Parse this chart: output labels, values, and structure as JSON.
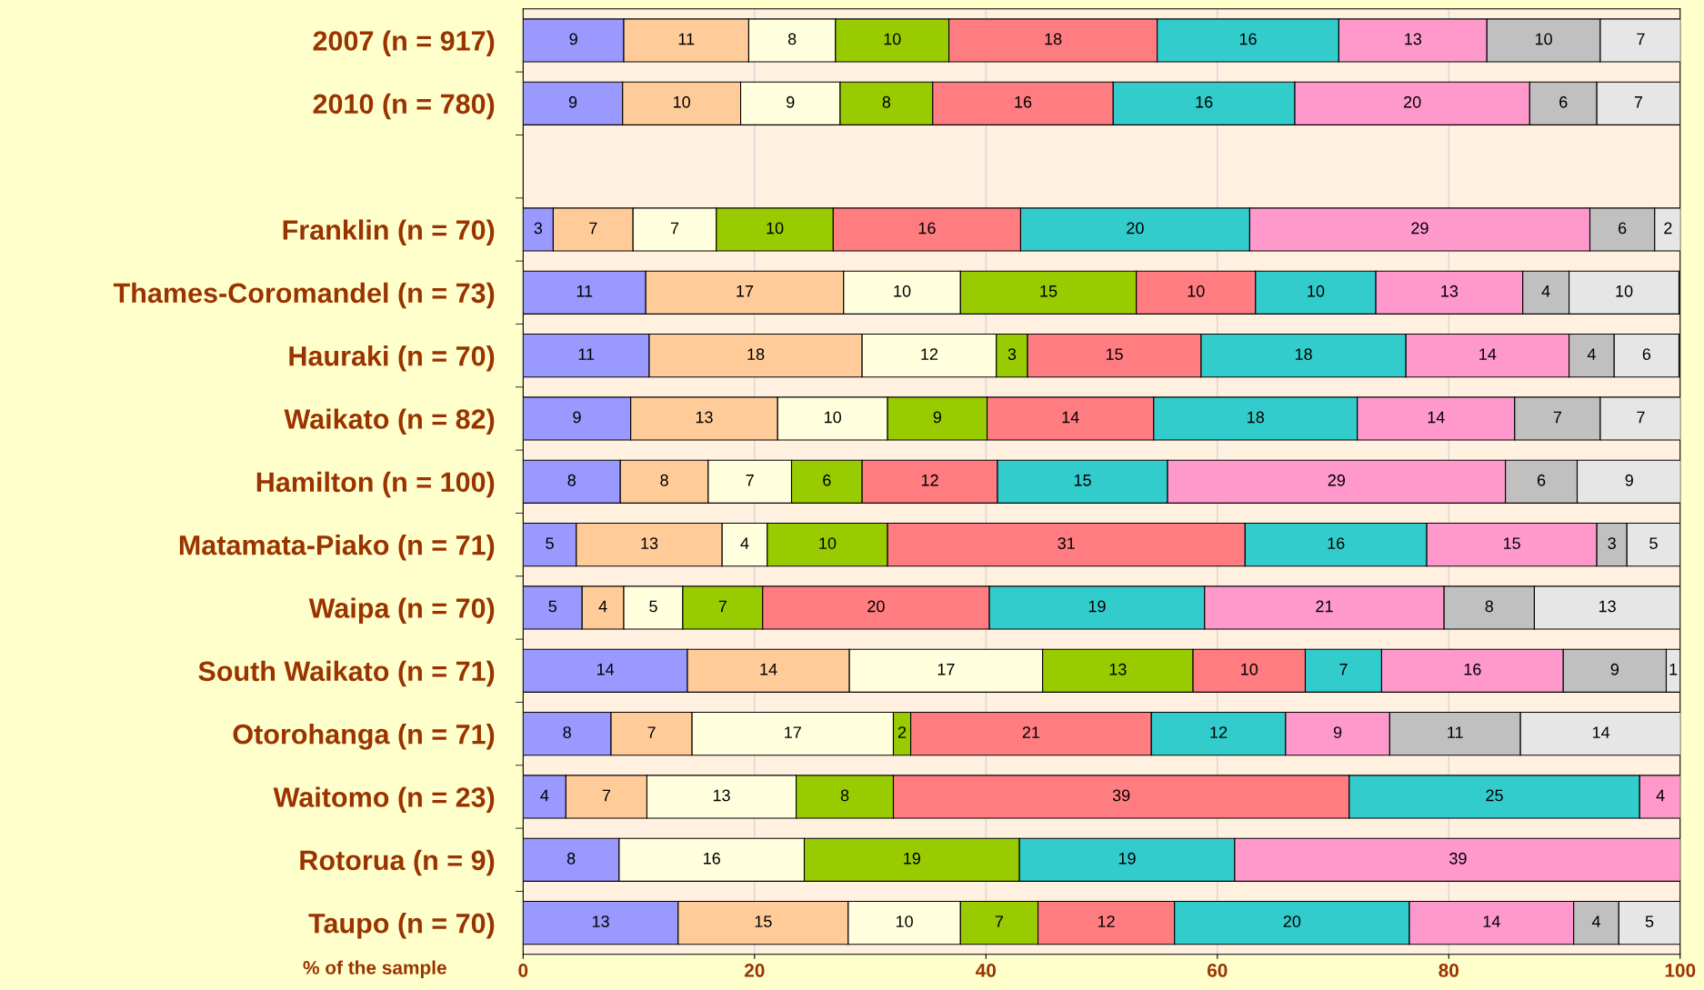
{
  "chart_data": {
    "type": "bar",
    "orientation": "horizontal",
    "stacked": true,
    "categories": [
      "2007 (n = 917)",
      "2010 (n = 780)",
      null,
      "Franklin (n = 70)",
      "Thames-Coromandel (n = 73)",
      "Hauraki (n = 70)",
      "Waikato (n = 82)",
      "Hamilton (n = 100)",
      "Matamata-Piako (n = 71)",
      "Waipa (n = 70)",
      "South Waikato (n = 71)",
      "Otorohanga (n = 71)",
      "Waitomo (n = 23)",
      "Rotorua (n = 9)",
      "Taupo (n = 70)"
    ],
    "series": [
      {
        "color": "#9999ff",
        "values": [
          8.7,
          8.6,
          null,
          2.6,
          10.6,
          10.9,
          9.3,
          8.4,
          4.6,
          5.1,
          14.2,
          7.6,
          3.7,
          8.3,
          13.4
        ],
        "value_labels": [
          "9",
          "9",
          null,
          "3",
          "11",
          "11",
          "9",
          "8",
          "5",
          "5",
          "14",
          "8",
          "4",
          "8",
          "13"
        ]
      },
      {
        "color": "#ffcc99",
        "values": [
          10.8,
          10.2,
          null,
          6.9,
          17.1,
          18.4,
          12.7,
          7.6,
          12.6,
          3.6,
          14.0,
          7.0,
          7.0,
          null,
          14.7
        ],
        "value_labels": [
          "11",
          "10",
          null,
          "7",
          "17",
          "18",
          "13",
          "8",
          "13",
          "4",
          "14",
          "7",
          "7",
          null,
          "15"
        ]
      },
      {
        "color": "#ffffdd",
        "values": [
          7.5,
          8.6,
          null,
          7.2,
          10.1,
          11.6,
          9.5,
          7.2,
          3.9,
          5.1,
          16.7,
          17.4,
          12.9,
          16.0,
          9.7
        ],
        "value_labels": [
          "8",
          "9",
          null,
          "7",
          "10",
          "12",
          "10",
          "7",
          "4",
          "5",
          "17",
          "17",
          "13",
          "16",
          "10"
        ]
      },
      {
        "color": "#99cc00",
        "values": [
          9.8,
          8.0,
          null,
          10.1,
          15.2,
          2.7,
          8.6,
          6.1,
          10.4,
          6.9,
          13.0,
          1.5,
          8.4,
          18.6,
          6.7
        ],
        "value_labels": [
          "10",
          "8",
          null,
          "10",
          "15",
          "3",
          "9",
          "6",
          "10",
          "7",
          "13",
          "2",
          "8",
          "19",
          "7"
        ]
      },
      {
        "color": "#ff7c80",
        "values": [
          18.0,
          15.6,
          null,
          16.2,
          10.3,
          15.0,
          14.4,
          11.7,
          30.9,
          19.6,
          9.7,
          20.8,
          39.4,
          null,
          11.8
        ],
        "value_labels": [
          "18",
          "16",
          null,
          "16",
          "10",
          "15",
          "14",
          "12",
          "31",
          "20",
          "10",
          "21",
          "39",
          null,
          "12"
        ]
      },
      {
        "color": "#33cccc",
        "values": [
          15.7,
          15.7,
          null,
          19.8,
          10.4,
          17.7,
          17.6,
          14.7,
          15.7,
          18.6,
          6.6,
          11.6,
          25.1,
          18.6,
          20.3
        ],
        "value_labels": [
          "16",
          "16",
          null,
          "20",
          "10",
          "18",
          "18",
          "15",
          "16",
          "19",
          "7",
          "12",
          "25",
          "19",
          "20"
        ]
      },
      {
        "color": "#ff99cc",
        "values": [
          12.8,
          20.3,
          null,
          29.4,
          12.7,
          14.1,
          13.6,
          29.2,
          14.7,
          20.7,
          15.7,
          9.0,
          3.6,
          38.6,
          14.2
        ],
        "value_labels": [
          "13",
          "20",
          null,
          "29",
          "13",
          "14",
          "14",
          "29",
          "15",
          "21",
          "16",
          "9",
          "4",
          "39",
          "14"
        ]
      },
      {
        "color": "#c0c0c0",
        "values": [
          9.8,
          5.8,
          null,
          5.6,
          4.0,
          3.9,
          7.4,
          6.2,
          2.6,
          7.8,
          8.9,
          11.3,
          null,
          null,
          3.9
        ],
        "value_labels": [
          "10",
          "6",
          null,
          "6",
          "4",
          "4",
          "7",
          "6",
          "3",
          "8",
          "9",
          "11",
          null,
          null,
          "4"
        ]
      },
      {
        "color": "#e6e6e6",
        "values": [
          7.0,
          7.2,
          null,
          2.3,
          9.5,
          5.6,
          7.0,
          9.0,
          4.6,
          12.6,
          1.2,
          13.9,
          null,
          null,
          5.3
        ],
        "value_labels": [
          "7",
          "7",
          null,
          "2",
          "10",
          "6",
          "7",
          "9",
          "5",
          "13",
          "1",
          "14",
          null,
          null,
          "5"
        ]
      }
    ],
    "xlim": [
      0,
      100
    ],
    "xticks": [
      0,
      20,
      40,
      60,
      80,
      100
    ],
    "grid": "x",
    "annotations": [
      "% of the sample"
    ]
  }
}
